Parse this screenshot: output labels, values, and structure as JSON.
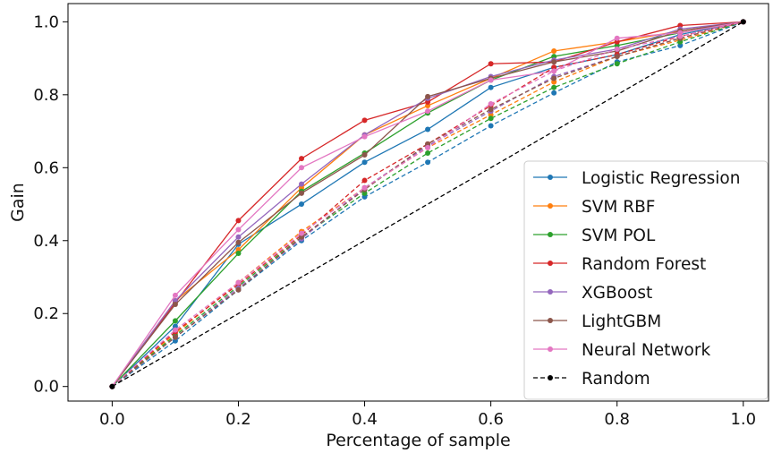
{
  "chart_data": {
    "type": "line",
    "xlabel": "Percentage of sample",
    "ylabel": "Gain",
    "xlim": [
      -0.07,
      1.04
    ],
    "ylim": [
      -0.04,
      1.05
    ],
    "xticks": [
      "0.0",
      "0.2",
      "0.4",
      "0.6",
      "0.8",
      "1.0"
    ],
    "yticks": [
      "0.0",
      "0.2",
      "0.4",
      "0.6",
      "0.8",
      "1.0"
    ],
    "grid": false,
    "legend_position": "right",
    "x": [
      0.0,
      0.1,
      0.2,
      0.3,
      0.4,
      0.5,
      0.6,
      0.7,
      0.8,
      0.9,
      1.0
    ],
    "series": [
      {
        "name": "Logistic Regression",
        "color": "#1f77b4",
        "style": "solid",
        "values": [
          0,
          0.165,
          0.39,
          0.5,
          0.615,
          0.705,
          0.82,
          0.875,
          0.91,
          0.965,
          1.0
        ]
      },
      {
        "name": "SVM RBF",
        "color": "#ff7f0e",
        "style": "solid",
        "values": [
          0,
          0.235,
          0.375,
          0.545,
          0.69,
          0.77,
          0.845,
          0.92,
          0.945,
          0.975,
          1.0
        ]
      },
      {
        "name": "SVM POL",
        "color": "#2ca02c",
        "style": "solid",
        "values": [
          0,
          0.18,
          0.365,
          0.535,
          0.64,
          0.75,
          0.84,
          0.905,
          0.935,
          0.97,
          1.0
        ]
      },
      {
        "name": "Random Forest",
        "color": "#d62728",
        "style": "solid",
        "values": [
          0,
          0.23,
          0.455,
          0.625,
          0.73,
          0.78,
          0.885,
          0.89,
          0.945,
          0.99,
          1.0
        ]
      },
      {
        "name": "XGBoost",
        "color": "#9467bd",
        "style": "solid",
        "values": [
          0,
          0.235,
          0.41,
          0.555,
          0.69,
          0.79,
          0.85,
          0.895,
          0.925,
          0.98,
          1.0
        ]
      },
      {
        "name": "LightGBM",
        "color": "#8c564b",
        "style": "solid",
        "values": [
          0,
          0.225,
          0.395,
          0.53,
          0.635,
          0.795,
          0.845,
          0.89,
          0.92,
          0.975,
          1.0
        ]
      },
      {
        "name": "Neural Network",
        "color": "#e377c2",
        "style": "solid",
        "values": [
          0,
          0.25,
          0.43,
          0.6,
          0.685,
          0.755,
          0.84,
          0.865,
          0.955,
          0.97,
          1.0
        ]
      },
      {
        "name": "",
        "color": "#1f77b4",
        "style": "dashed",
        "legend": false,
        "values": [
          0,
          0.125,
          0.265,
          0.4,
          0.52,
          0.615,
          0.715,
          0.805,
          0.89,
          0.935,
          1.0
        ]
      },
      {
        "name": "",
        "color": "#ff7f0e",
        "style": "dashed",
        "legend": false,
        "values": [
          0,
          0.145,
          0.285,
          0.425,
          0.545,
          0.655,
          0.745,
          0.835,
          0.905,
          0.95,
          1.0
        ]
      },
      {
        "name": "",
        "color": "#2ca02c",
        "style": "dashed",
        "legend": false,
        "values": [
          0,
          0.14,
          0.275,
          0.41,
          0.53,
          0.64,
          0.735,
          0.82,
          0.885,
          0.945,
          1.0
        ]
      },
      {
        "name": "",
        "color": "#d62728",
        "style": "dashed",
        "legend": false,
        "values": [
          0,
          0.15,
          0.28,
          0.415,
          0.565,
          0.665,
          0.77,
          0.875,
          0.91,
          0.96,
          1.0
        ]
      },
      {
        "name": "",
        "color": "#9467bd",
        "style": "dashed",
        "legend": false,
        "values": [
          0,
          0.135,
          0.27,
          0.405,
          0.545,
          0.66,
          0.755,
          0.85,
          0.905,
          0.955,
          1.0
        ]
      },
      {
        "name": "",
        "color": "#8c564b",
        "style": "dashed",
        "legend": false,
        "values": [
          0,
          0.135,
          0.265,
          0.41,
          0.54,
          0.665,
          0.76,
          0.845,
          0.905,
          0.955,
          1.0
        ]
      },
      {
        "name": "",
        "color": "#e377c2",
        "style": "dashed",
        "legend": false,
        "values": [
          0,
          0.155,
          0.285,
          0.42,
          0.545,
          0.655,
          0.775,
          0.865,
          0.925,
          0.96,
          1.0
        ]
      },
      {
        "name": "Random",
        "color": "#000000",
        "style": "dashed",
        "baseline": true,
        "x": [
          0.0,
          1.0
        ],
        "values": [
          0.0,
          1.0
        ]
      }
    ]
  }
}
